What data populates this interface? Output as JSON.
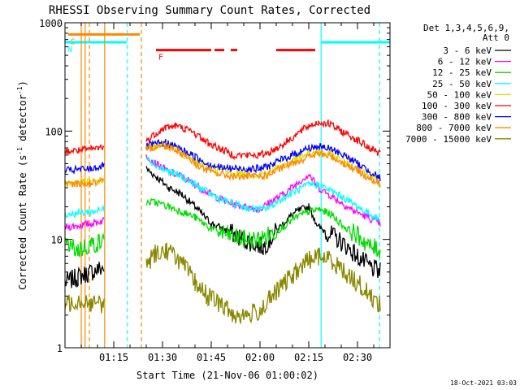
{
  "chart_data": {
    "type": "line",
    "title": "RHESSI Observing Summary Count Rates, Corrected",
    "xlabel": "Start Time (21-Nov-06 01:00:02)",
    "ylabel": "Corrected Count Rate (s⁻¹ detector⁻¹)",
    "ylabel_parts": {
      "a": "Corrected Count Rate (s",
      "exp1": "-1",
      "b": " detector",
      "exp2": "-1",
      "c": ")"
    },
    "yscale": "log",
    "ylim": [
      1,
      1000
    ],
    "xlim_minutes": [
      0,
      100
    ],
    "x_ticks": [
      {
        "label": "01:15",
        "minutes": 15
      },
      {
        "label": "01:30",
        "minutes": 30
      },
      {
        "label": "01:45",
        "minutes": 45
      },
      {
        "label": "02:00",
        "minutes": 60
      },
      {
        "label": "02:15",
        "minutes": 75
      },
      {
        "label": "02:30",
        "minutes": 90
      }
    ],
    "y_ticks": [
      {
        "label": "1",
        "value": 1
      },
      {
        "label": "10",
        "value": 10
      },
      {
        "label": "100",
        "value": 100
      },
      {
        "label": "1000",
        "value": 1000
      }
    ],
    "legend": {
      "placement": "right",
      "header1": "Det 1,3,4,5,6,9,",
      "header2": "Att 0",
      "entries": [
        {
          "label": "3 - 6 keV",
          "color": "#000000"
        },
        {
          "label": "6 - 12 keV",
          "color": "#ff00ff"
        },
        {
          "label": "12 - 25 keV",
          "color": "#00dd00"
        },
        {
          "label": "25 - 50 keV",
          "color": "#00ffff"
        },
        {
          "label": "50 - 100 keV",
          "color": "#dddd00"
        },
        {
          "label": "100 - 300 keV",
          "color": "#ff0000"
        },
        {
          "label": "300 - 800 keV",
          "color": "#0000ff"
        },
        {
          "label": "800 - 7000 keV",
          "color": "#ff8800"
        },
        {
          "label": "7000 - 15000 keV",
          "color": "#888800"
        }
      ]
    },
    "series": [
      {
        "name": "3 - 6 keV",
        "color": "#000000",
        "segments": [
          [
            [
              0,
              4
            ],
            [
              4,
              4.5
            ],
            [
              8,
              5
            ],
            [
              12,
              5.5
            ]
          ],
          [
            [
              25,
              45
            ],
            [
              28,
              38
            ],
            [
              32,
              30
            ],
            [
              36,
              26
            ],
            [
              40,
              20
            ],
            [
              45,
              14
            ],
            [
              50,
              12
            ],
            [
              55,
              10
            ],
            [
              59,
              9
            ],
            [
              61,
              8.5
            ],
            [
              63,
              10
            ],
            [
              67,
              14
            ],
            [
              71,
              18
            ],
            [
              75,
              20
            ],
            [
              78,
              13
            ],
            [
              82,
              11
            ],
            [
              86,
              9
            ],
            [
              90,
              7
            ],
            [
              94,
              5.5
            ],
            [
              97,
              5
            ]
          ]
        ]
      },
      {
        "name": "6 - 12 keV",
        "color": "#ff00ff",
        "segments": [
          [
            [
              0,
              13
            ],
            [
              5,
              13.5
            ],
            [
              8,
              14
            ],
            [
              12,
              15
            ]
          ],
          [
            [
              25,
              60
            ],
            [
              28,
              50
            ],
            [
              32,
              42
            ],
            [
              36,
              38
            ],
            [
              40,
              32
            ],
            [
              45,
              26
            ],
            [
              50,
              22
            ],
            [
              55,
              20
            ],
            [
              60,
              19
            ],
            [
              63,
              22
            ],
            [
              67,
              26
            ],
            [
              71,
              32
            ],
            [
              75,
              40
            ],
            [
              78,
              30
            ],
            [
              83,
              24
            ],
            [
              88,
              19
            ],
            [
              93,
              16
            ],
            [
              97,
              14
            ]
          ]
        ]
      },
      {
        "name": "12 - 25 keV",
        "color": "#00dd00",
        "segments": [
          [
            [
              0,
              9
            ],
            [
              4,
              8
            ],
            [
              8,
              9
            ],
            [
              12,
              9.5
            ]
          ],
          [
            [
              25,
              22
            ],
            [
              28,
              22
            ],
            [
              32,
              20
            ],
            [
              36,
              18
            ],
            [
              40,
              16
            ],
            [
              45,
              12.5
            ],
            [
              50,
              11
            ],
            [
              55,
              10
            ],
            [
              58,
              10
            ],
            [
              60,
              10
            ],
            [
              63,
              11
            ],
            [
              67,
              13
            ],
            [
              71,
              16
            ],
            [
              75,
              18
            ],
            [
              78,
              19
            ],
            [
              82,
              17
            ],
            [
              86,
              13
            ],
            [
              90,
              11
            ],
            [
              94,
              8.5
            ],
            [
              97,
              8
            ]
          ]
        ]
      },
      {
        "name": "25 - 50 keV",
        "color": "#00ffff",
        "segments": [
          [
            [
              0,
              17
            ],
            [
              4,
              17.5
            ],
            [
              8,
              18
            ],
            [
              12,
              19
            ]
          ],
          [
            [
              25,
              60
            ],
            [
              28,
              48
            ],
            [
              32,
              42
            ],
            [
              36,
              38
            ],
            [
              40,
              32
            ],
            [
              45,
              26
            ],
            [
              50,
              22
            ],
            [
              55,
              20
            ],
            [
              58,
              19
            ],
            [
              61,
              19
            ],
            [
              63,
              20
            ],
            [
              67,
              24
            ],
            [
              71,
              28
            ],
            [
              75,
              32
            ],
            [
              78,
              32
            ],
            [
              82,
              28
            ],
            [
              86,
              24
            ],
            [
              90,
              20
            ],
            [
              94,
              17
            ],
            [
              97,
              15
            ]
          ]
        ]
      },
      {
        "name": "50 - 100 keV",
        "color": "#dddd00",
        "segments": [
          [
            [
              0,
              33
            ],
            [
              4,
              33.5
            ],
            [
              8,
              34
            ],
            [
              12,
              35
            ]
          ],
          [
            [
              25,
              70
            ],
            [
              28,
              74
            ],
            [
              30,
              75
            ],
            [
              33,
              70
            ],
            [
              36,
              62
            ],
            [
              40,
              52
            ],
            [
              45,
              45
            ],
            [
              50,
              42
            ],
            [
              55,
              40
            ],
            [
              60,
              40
            ],
            [
              63,
              42
            ],
            [
              67,
              48
            ],
            [
              71,
              55
            ],
            [
              75,
              62
            ],
            [
              78,
              64
            ],
            [
              82,
              60
            ],
            [
              86,
              52
            ],
            [
              90,
              45
            ],
            [
              94,
              38
            ],
            [
              97,
              33
            ]
          ]
        ]
      },
      {
        "name": "100 - 300 keV",
        "color": "#ff0000",
        "segments": [
          [
            [
              0,
              65
            ],
            [
              4,
              66
            ],
            [
              8,
              68
            ],
            [
              12,
              72
            ]
          ],
          [
            [
              25,
              80
            ],
            [
              28,
              96
            ],
            [
              31,
              108
            ],
            [
              34,
              112
            ],
            [
              37,
              105
            ],
            [
              40,
              95
            ],
            [
              44,
              78
            ],
            [
              48,
              68
            ],
            [
              52,
              60
            ],
            [
              56,
              60
            ],
            [
              60,
              60
            ],
            [
              63,
              64
            ],
            [
              67,
              75
            ],
            [
              71,
              92
            ],
            [
              75,
              112
            ],
            [
              78,
              120
            ],
            [
              81,
              118
            ],
            [
              85,
              100
            ],
            [
              89,
              86
            ],
            [
              93,
              72
            ],
            [
              97,
              62
            ]
          ]
        ]
      },
      {
        "name": "300 - 800 keV",
        "color": "#0000ff",
        "segments": [
          [
            [
              0,
              43
            ],
            [
              4,
              44
            ],
            [
              8,
              45
            ],
            [
              12,
              48
            ]
          ],
          [
            [
              25,
              72
            ],
            [
              28,
              76
            ],
            [
              31,
              78
            ],
            [
              34,
              72
            ],
            [
              37,
              65
            ],
            [
              40,
              58
            ],
            [
              44,
              50
            ],
            [
              48,
              46
            ],
            [
              52,
              45
            ],
            [
              56,
              45
            ],
            [
              60,
              45
            ],
            [
              63,
              48
            ],
            [
              67,
              55
            ],
            [
              71,
              62
            ],
            [
              75,
              70
            ],
            [
              78,
              72
            ],
            [
              82,
              68
            ],
            [
              86,
              60
            ],
            [
              90,
              50
            ],
            [
              94,
              42
            ],
            [
              97,
              37
            ]
          ]
        ]
      },
      {
        "name": "800 - 7000 keV",
        "color": "#ff8800",
        "segments": [
          [
            [
              0,
              32
            ],
            [
              4,
              33
            ],
            [
              8,
              33
            ],
            [
              12,
              34
            ]
          ],
          [
            [
              25,
              68
            ],
            [
              28,
              72
            ],
            [
              31,
              74
            ],
            [
              34,
              68
            ],
            [
              37,
              60
            ],
            [
              40,
              50
            ],
            [
              44,
              43
            ],
            [
              48,
              40
            ],
            [
              52,
              38
            ],
            [
              56,
              38
            ],
            [
              60,
              38
            ],
            [
              63,
              40
            ],
            [
              67,
              46
            ],
            [
              71,
              52
            ],
            [
              75,
              58
            ],
            [
              78,
              62
            ],
            [
              82,
              58
            ],
            [
              86,
              50
            ],
            [
              90,
              43
            ],
            [
              94,
              36
            ],
            [
              97,
              32
            ]
          ]
        ]
      },
      {
        "name": "7000 - 15000 keV",
        "color": "#888800",
        "segments": [
          [
            [
              0,
              2.5
            ],
            [
              4,
              2.8
            ],
            [
              8,
              2.6
            ],
            [
              12,
              2.5
            ]
          ],
          [
            [
              25,
              6
            ],
            [
              28,
              7.5
            ],
            [
              31,
              8
            ],
            [
              34,
              7
            ],
            [
              37,
              5.5
            ],
            [
              40,
              4
            ],
            [
              44,
              3
            ],
            [
              48,
              2.5
            ],
            [
              52,
              2
            ],
            [
              56,
              2
            ],
            [
              60,
              2.2
            ],
            [
              63,
              2.8
            ],
            [
              67,
              3.8
            ],
            [
              71,
              5
            ],
            [
              75,
              6.5
            ],
            [
              78,
              7
            ],
            [
              82,
              6.5
            ],
            [
              86,
              5
            ],
            [
              90,
              4
            ],
            [
              94,
              3
            ],
            [
              97,
              2.5
            ]
          ]
        ]
      }
    ],
    "flags": [
      {
        "label": "S",
        "color": "#ff8800",
        "y": 780,
        "x_start": 1,
        "x_end": 23
      },
      {
        "label": "N",
        "color": "#00ffff",
        "y": 660,
        "x_start": 0,
        "x_end": 19
      },
      {
        "label": "",
        "color": "#00ffff",
        "y": 660,
        "x_start": 79,
        "x_end": 100
      },
      {
        "label": "F",
        "color": "#ff0000",
        "y": 560,
        "x_start": 28,
        "x_end": 45
      },
      {
        "label": "",
        "color": "#ff0000",
        "y": 560,
        "x_start": 46,
        "x_end": 49
      },
      {
        "label": "",
        "color": "#ff0000",
        "y": 560,
        "x_start": 51,
        "x_end": 53
      },
      {
        "label": "",
        "color": "#ff0000",
        "y": 560,
        "x_start": 65,
        "x_end": 77
      }
    ],
    "vlines": [
      {
        "x": 5,
        "color": "#ff8800",
        "style": "solid"
      },
      {
        "x": 6.2,
        "color": "#ff8800",
        "style": "solid"
      },
      {
        "x": 7.5,
        "color": "#ff8800",
        "style": "dashed"
      },
      {
        "x": 12.2,
        "color": "#ff8800",
        "style": "solid"
      },
      {
        "x": 19.2,
        "color": "#00ffff",
        "style": "dashed"
      },
      {
        "x": 23.5,
        "color": "#ff8800",
        "style": "dashed"
      },
      {
        "x": 78.8,
        "color": "#00ffff",
        "style": "solid"
      },
      {
        "x": 96.8,
        "color": "#00ffff",
        "style": "dashed"
      }
    ],
    "gaps": [
      [
        12.5,
        24.8
      ]
    ]
  },
  "timestamp": "18-Oct-2021 03:03"
}
